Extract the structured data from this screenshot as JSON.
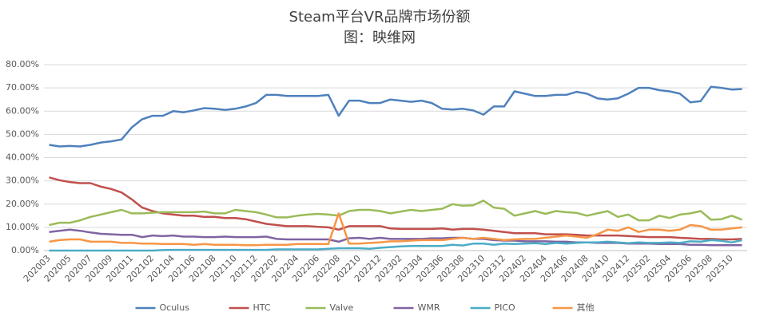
{
  "chart_data": {
    "type": "line",
    "title": "Steam平台VR品牌市场份额",
    "subtitle": "图：映维网",
    "categories": [
      "202003",
      null,
      "202005",
      null,
      "202007",
      null,
      "202009",
      null,
      "202011",
      null,
      "202102",
      null,
      "202104",
      null,
      "202106",
      null,
      "202108",
      null,
      "202110",
      null,
      "202112",
      null,
      "202202",
      null,
      "202204",
      null,
      "202206",
      null,
      "202208",
      null,
      "202210",
      null,
      "202212",
      null,
      "202302",
      null,
      "202304",
      null,
      "202306",
      null,
      "202308",
      null,
      "202310",
      null,
      "202312",
      null,
      "202402",
      null,
      "202404",
      null,
      "202406",
      null,
      "202408",
      null,
      "202410",
      null,
      "202412",
      null,
      "202502",
      null,
      "202504",
      null,
      "202506",
      null,
      "202508",
      null,
      "202510",
      null
    ],
    "series": [
      {
        "name": "Oculus",
        "color": "#4f81bd",
        "values": [
          45.5,
          44.8,
          45,
          44.8,
          45.5,
          46.5,
          47,
          47.8,
          53,
          56.5,
          58,
          58,
          60,
          59.5,
          60.3,
          61.3,
          61,
          60.5,
          61,
          62,
          63.5,
          67,
          67,
          66.5,
          66.5,
          66.5,
          66.5,
          67,
          58,
          64.5,
          64.5,
          63.5,
          63.5,
          65,
          64.5,
          64,
          64.5,
          63.5,
          61,
          60.7,
          61,
          60.3,
          58.5,
          62,
          62,
          68.5,
          67.5,
          66.5,
          66.5,
          67,
          67,
          68.3,
          67.5,
          65.5,
          65,
          65.5,
          67.5,
          70,
          70,
          69,
          68.5,
          67.5,
          63.8,
          64.3,
          70.5,
          70,
          69.3,
          69.5
        ]
      },
      {
        "name": "HTC",
        "color": "#c0504d",
        "values": [
          31.5,
          30.3,
          29.5,
          29,
          29,
          27.5,
          26.5,
          25,
          22,
          18.5,
          17,
          16,
          15.5,
          15,
          15,
          14.5,
          14.5,
          14,
          14,
          13.5,
          12.5,
          11.5,
          11,
          10.5,
          10.5,
          10.5,
          10.2,
          10,
          9,
          10.5,
          10.5,
          10.5,
          10.5,
          9.5,
          9.3,
          9.3,
          9.3,
          9.3,
          9.5,
          9,
          9.3,
          9.3,
          9,
          8.5,
          8,
          7.5,
          7.5,
          7.5,
          7,
          7,
          7,
          6.8,
          6.5,
          6.5,
          6.5,
          6.5,
          6.3,
          6,
          5.8,
          5.8,
          5.8,
          5.5,
          5.3,
          5,
          5,
          4.8,
          4.8,
          5
        ]
      },
      {
        "name": "Valve",
        "color": "#9bbb59",
        "values": [
          11,
          12,
          12,
          13,
          14.5,
          15.5,
          16.5,
          17.5,
          16,
          16,
          16.3,
          16.5,
          16.5,
          16.5,
          16.5,
          16.8,
          16,
          16,
          17.5,
          17,
          16.5,
          15.5,
          14.3,
          14.3,
          15,
          15.5,
          15.8,
          15.5,
          15,
          17,
          17.5,
          17.5,
          17,
          16,
          16.8,
          17.5,
          17,
          17.5,
          18,
          20,
          19.3,
          19.5,
          21.5,
          18.5,
          18,
          15,
          16,
          17,
          15.8,
          17,
          16.5,
          16.2,
          15,
          16,
          17,
          14.5,
          15.5,
          13,
          13,
          15,
          14,
          15.5,
          16,
          17,
          13.3,
          13.5,
          15,
          13.3
        ]
      },
      {
        "name": "WMR",
        "color": "#8064a2",
        "values": [
          8,
          8.5,
          9,
          8.5,
          7.8,
          7.2,
          7,
          6.8,
          6.8,
          5.8,
          6.5,
          6.2,
          6.5,
          6,
          6,
          5.8,
          5.8,
          6,
          5.8,
          5.8,
          5.8,
          6,
          5,
          4.8,
          4.8,
          4.8,
          4.8,
          4.8,
          3.8,
          5.3,
          5.5,
          5,
          5.5,
          5,
          5,
          5,
          5,
          5.3,
          5.3,
          5.5,
          5.5,
          5,
          5,
          4.5,
          4.3,
          4.3,
          4,
          4,
          4,
          3.8,
          3.8,
          3.5,
          3.5,
          3.3,
          3.3,
          3.3,
          3,
          3,
          3,
          2.8,
          2.8,
          2.8,
          2.5,
          2.5,
          2.3,
          2.3,
          2.3,
          2.3
        ]
      },
      {
        "name": "PICO",
        "color": "#4bacc6",
        "values": [
          0,
          0,
          0,
          0,
          0,
          0,
          0,
          0,
          0,
          0,
          0,
          0.2,
          0.3,
          0.3,
          0.3,
          0.3,
          0.3,
          0.3,
          0.3,
          0.3,
          0.3,
          0.3,
          0.5,
          0.5,
          0.5,
          0.5,
          0.5,
          0.8,
          1,
          1,
          1,
          0.8,
          1.2,
          1.5,
          1.8,
          2,
          2,
          2,
          2,
          2.5,
          2.2,
          3,
          3,
          2.5,
          3,
          2.8,
          3,
          3.2,
          2.8,
          3.3,
          3,
          3.3,
          3.5,
          3.5,
          3.8,
          3.5,
          3.2,
          3.5,
          3.3,
          3.3,
          3.5,
          3.3,
          4,
          3.8,
          4.5,
          4.2,
          3.5,
          4.5
        ]
      },
      {
        "name": "其他",
        "color": "#f79646",
        "values": [
          3.8,
          4.5,
          4.8,
          4.8,
          3.8,
          3.8,
          3.8,
          3.3,
          3.3,
          3,
          3,
          2.8,
          2.8,
          2.8,
          2.5,
          2.8,
          2.5,
          2.5,
          2.5,
          2.3,
          2.3,
          2.5,
          2.5,
          2.5,
          2.8,
          2.8,
          2.8,
          2.8,
          16,
          3,
          3,
          3.3,
          3.5,
          4,
          4,
          4.3,
          4.5,
          4.5,
          4.5,
          5,
          5.5,
          5,
          5.5,
          5,
          4.5,
          4.8,
          5,
          5,
          5.5,
          6,
          6.5,
          6,
          5.5,
          7,
          9,
          8.5,
          10,
          8,
          9,
          9,
          8.5,
          9,
          11,
          10.5,
          9,
          9,
          9.5,
          10
        ]
      }
    ],
    "ylim": [
      0,
      80
    ],
    "yticks": [
      {
        "value": 0,
        "label": "0.00%"
      },
      {
        "value": 10,
        "label": "10.00%"
      },
      {
        "value": 20,
        "label": "20.00%"
      },
      {
        "value": 30,
        "label": "30.00%"
      },
      {
        "value": 40,
        "label": "40.00%"
      },
      {
        "value": 50,
        "label": "50.00%"
      },
      {
        "value": 60,
        "label": "60.00%"
      },
      {
        "value": 70,
        "label": "70.00%"
      },
      {
        "value": 80,
        "label": "80.00%"
      }
    ],
    "grid": true,
    "legend": "bottom"
  }
}
